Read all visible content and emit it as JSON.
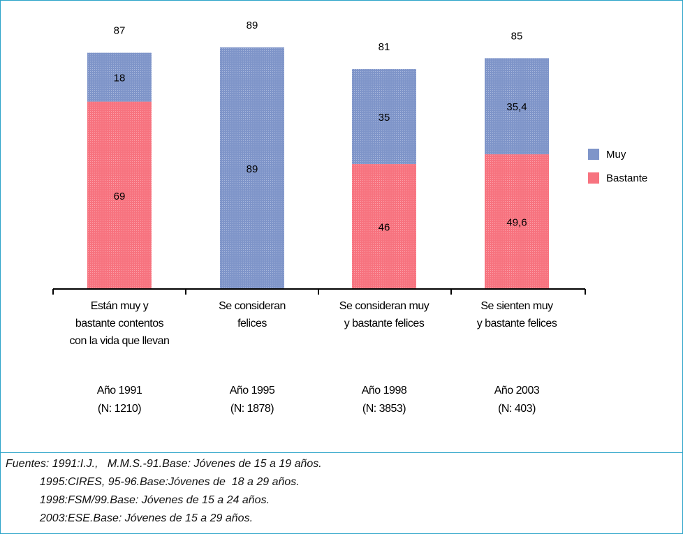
{
  "chart_data": {
    "type": "bar",
    "stacked": true,
    "ylim": [
      0,
      100
    ],
    "categories": [
      [
        "Están muy y",
        "bastante contentos",
        "con la vida que llevan"
      ],
      [
        "Se consideran",
        "felices"
      ],
      [
        "Se consideran muy",
        "y bastante felices"
      ],
      [
        "Se sienten muy",
        "y bastante felices"
      ]
    ],
    "years": [
      [
        "Año 1991",
        "(N: 1210)"
      ],
      [
        "Año 1995",
        "(N: 1878)"
      ],
      [
        "Año 1998",
        "(N: 3853)"
      ],
      [
        "Año 2003",
        "(N: 403)"
      ]
    ],
    "totals": [
      "87",
      "89",
      "81",
      "85"
    ],
    "total_values": [
      87,
      89,
      81,
      85
    ],
    "series": [
      {
        "name": "Bastante",
        "values": [
          69,
          0,
          46,
          49.6
        ],
        "labels": [
          "69",
          "",
          "46",
          "49,6"
        ],
        "color": "#f7737f"
      },
      {
        "name": "Muy",
        "values": [
          18,
          89,
          35,
          35.4
        ],
        "labels": [
          "18",
          "89",
          "35",
          "35,4"
        ],
        "color": "#7f95c9"
      }
    ],
    "legend": {
      "position": "right",
      "order": [
        "Muy",
        "Bastante"
      ]
    },
    "grid": false
  },
  "sources": [
    "Fuentes: 1991:I.J.,   M.M.S.-91.Base: Jóvenes de 15 a 19 años.",
    "           1995:CIRES, 95-96.Base:Jóvenes de  18 a 29 años.",
    "           1998:FSM/99.Base: Jóvenes de 15 a 24 años.",
    "           2003:ESE.Base: Jóvenes de 15 a 29 años."
  ]
}
